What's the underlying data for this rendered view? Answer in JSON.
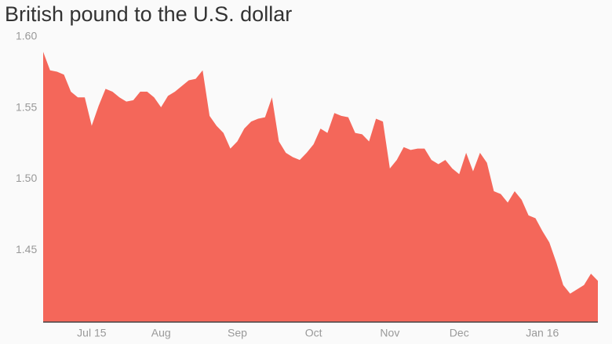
{
  "chart_data": {
    "type": "area",
    "title": "British pound to the U.S. dollar",
    "categories": [
      null,
      null,
      null,
      null,
      null,
      null,
      null,
      "Jul 15",
      null,
      null,
      null,
      null,
      null,
      null,
      null,
      null,
      null,
      "Aug",
      null,
      null,
      null,
      null,
      null,
      null,
      null,
      null,
      null,
      null,
      "Sep",
      null,
      null,
      null,
      null,
      null,
      null,
      null,
      null,
      null,
      null,
      "Oct",
      null,
      null,
      null,
      null,
      null,
      null,
      null,
      null,
      null,
      null,
      "Nov",
      null,
      null,
      null,
      null,
      null,
      null,
      null,
      null,
      null,
      "Dec",
      null,
      null,
      null,
      null,
      null,
      null,
      null,
      null,
      null,
      null,
      null,
      "Jan 16",
      null,
      null,
      null,
      null,
      null,
      null,
      null,
      null
    ],
    "values": [
      1.59,
      1.577,
      1.576,
      1.574,
      1.562,
      1.558,
      1.558,
      1.538,
      1.552,
      1.564,
      1.562,
      1.558,
      1.555,
      1.556,
      1.562,
      1.562,
      1.558,
      1.551,
      1.559,
      1.562,
      1.566,
      1.57,
      1.571,
      1.577,
      1.545,
      1.538,
      1.533,
      1.522,
      1.527,
      1.536,
      1.541,
      1.543,
      1.544,
      1.558,
      1.527,
      1.519,
      1.516,
      1.514,
      1.519,
      1.525,
      1.536,
      1.533,
      1.547,
      1.545,
      1.544,
      1.533,
      1.532,
      1.527,
      1.543,
      1.541,
      1.508,
      1.514,
      1.523,
      1.521,
      1.522,
      1.522,
      1.514,
      1.511,
      1.514,
      1.508,
      1.504,
      1.519,
      1.506,
      1.519,
      1.512,
      1.492,
      1.49,
      1.484,
      1.492,
      1.486,
      1.475,
      1.473,
      1.464,
      1.456,
      1.442,
      1.426,
      1.42,
      1.423,
      1.426,
      1.434,
      1.429
    ],
    "color": "#f4675a",
    "ylim": [
      1.4,
      1.6
    ],
    "yticks": [
      1.45,
      {
        "value": 1.5,
        "label": "1.50"
      },
      1.55,
      {
        "value": 1.6,
        "label": "1.60"
      }
    ]
  }
}
